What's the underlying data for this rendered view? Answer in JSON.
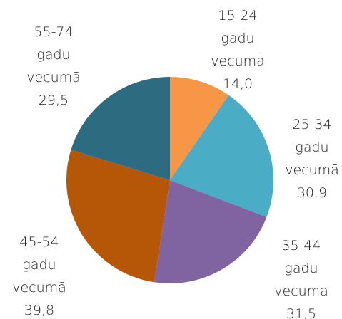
{
  "chart_data": {
    "type": "pie",
    "categories": [
      "15-24 gadu vecumā",
      "25-34 gadu vecumā",
      "35-44 gadu vecumā",
      "45-54 gadu vecumā",
      "55-74 gadu vecumā"
    ],
    "values": [
      14.0,
      30.9,
      31.5,
      39.8,
      29.5
    ],
    "value_labels": [
      "14,0",
      "30,9",
      "31,5",
      "39,8",
      "29,5"
    ],
    "colors": [
      "#f79646",
      "#4bacc6",
      "#8064a2",
      "#b65708",
      "#2c6b80"
    ]
  }
}
